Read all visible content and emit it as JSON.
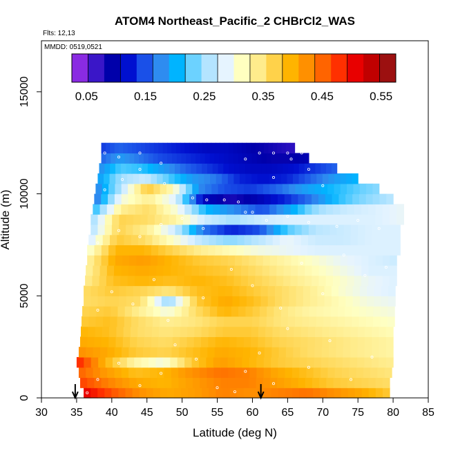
{
  "chart_data": {
    "type": "heatmap",
    "title": "ATOM4 Northeast_Pacific_2 CHBrCl2_WAS",
    "flights_note": "Flts: 12,13",
    "mmdd_note": "MMDD: 0519,0521",
    "xlabel": "Latitude (deg N)",
    "ylabel": "Altitude (m)",
    "xlim": [
      30,
      85
    ],
    "ylim": [
      0,
      17500
    ],
    "xticks": [
      30,
      35,
      40,
      45,
      50,
      55,
      60,
      65,
      70,
      75,
      80,
      85
    ],
    "yticks": [
      0,
      5000,
      10000,
      15000
    ],
    "colorbar": {
      "min": 0.025,
      "max": 0.575,
      "ticks": [
        0.05,
        0.15,
        0.25,
        0.35,
        0.45,
        0.55
      ],
      "tick_labels": [
        "0.05",
        "0.15",
        "0.25",
        "0.35",
        "0.45",
        "0.55"
      ],
      "colors": [
        "#8a2be2",
        "#3a16c8",
        "#0000aa",
        "#0010d0",
        "#1a50e8",
        "#2e8cf0",
        "#00b4ff",
        "#6cd2ff",
        "#b4e4ff",
        "#e6f4ff",
        "#ffffc0",
        "#ffec8c",
        "#ffd24a",
        "#ffb400",
        "#ff9000",
        "#ff6400",
        "#ff3000",
        "#e80000",
        "#c00000",
        "#9c1010"
      ]
    },
    "altitude_levels_m": [
      250,
      750,
      1250,
      1750,
      2250,
      2750,
      3250,
      3750,
      4250,
      4750,
      5250,
      5750,
      6250,
      6750,
      7250,
      7750,
      8250,
      8750,
      9250,
      9750,
      10250,
      10750,
      11250,
      11750,
      12250
    ],
    "row_lat_extent": [
      [
        36,
        79.5
      ],
      [
        35.5,
        79.5
      ],
      [
        35.3,
        79.8
      ],
      [
        35,
        80
      ],
      [
        35.3,
        80
      ],
      [
        35.5,
        80
      ],
      [
        35.6,
        80
      ],
      [
        35.7,
        80.2
      ],
      [
        35.8,
        80.2
      ],
      [
        36,
        80.3
      ],
      [
        36,
        80.3
      ],
      [
        36.2,
        80.5
      ],
      [
        36.3,
        80.5
      ],
      [
        36.5,
        80.5
      ],
      [
        36.5,
        81
      ],
      [
        36.7,
        81
      ],
      [
        37,
        81
      ],
      [
        37,
        81.5
      ],
      [
        37.3,
        81.5
      ],
      [
        37.5,
        80
      ],
      [
        37.7,
        78
      ],
      [
        38,
        75
      ],
      [
        38.2,
        72
      ],
      [
        38.5,
        68
      ],
      [
        38.5,
        66
      ]
    ],
    "row_values": [
      [
        0.52,
        0.47,
        0.43,
        0.41,
        0.42,
        0.44,
        0.43,
        0.44,
        0.45,
        0.43,
        0.41,
        0.38
      ],
      [
        0.48,
        0.44,
        0.41,
        0.4,
        0.42,
        0.44,
        0.44,
        0.42,
        0.4,
        0.38,
        0.37,
        0.36
      ],
      [
        0.46,
        0.42,
        0.39,
        0.4,
        0.43,
        0.45,
        0.44,
        0.41,
        0.39,
        0.37,
        0.36,
        0.35
      ],
      [
        0.5,
        0.4,
        0.33,
        0.3,
        0.38,
        0.42,
        0.4,
        0.38,
        0.37,
        0.36,
        0.35,
        0.34
      ],
      [
        0.43,
        0.41,
        0.38,
        0.37,
        0.39,
        0.41,
        0.4,
        0.38,
        0.36,
        0.35,
        0.34,
        0.33
      ],
      [
        0.41,
        0.4,
        0.37,
        0.36,
        0.38,
        0.4,
        0.39,
        0.37,
        0.36,
        0.35,
        0.34,
        0.33
      ],
      [
        0.4,
        0.39,
        0.36,
        0.35,
        0.36,
        0.38,
        0.38,
        0.36,
        0.35,
        0.34,
        0.33,
        0.32
      ],
      [
        0.38,
        0.39,
        0.36,
        0.34,
        0.35,
        0.37,
        0.37,
        0.35,
        0.34,
        0.33,
        0.32,
        0.31
      ],
      [
        0.37,
        0.38,
        0.34,
        0.3,
        0.36,
        0.4,
        0.38,
        0.35,
        0.33,
        0.32,
        0.31,
        0.3
      ],
      [
        0.36,
        0.37,
        0.36,
        0.24,
        0.38,
        0.41,
        0.39,
        0.36,
        0.34,
        0.32,
        0.3,
        0.29
      ],
      [
        0.36,
        0.38,
        0.37,
        0.35,
        0.39,
        0.4,
        0.38,
        0.36,
        0.34,
        0.31,
        0.29,
        0.28
      ],
      [
        0.34,
        0.39,
        0.4,
        0.39,
        0.4,
        0.39,
        0.37,
        0.35,
        0.33,
        0.31,
        0.29,
        0.28
      ],
      [
        0.33,
        0.4,
        0.41,
        0.4,
        0.39,
        0.38,
        0.36,
        0.34,
        0.32,
        0.3,
        0.28,
        0.28
      ],
      [
        0.33,
        0.41,
        0.42,
        0.4,
        0.38,
        0.37,
        0.35,
        0.33,
        0.31,
        0.29,
        0.28,
        0.27
      ],
      [
        0.3,
        0.4,
        0.4,
        0.37,
        0.34,
        0.32,
        0.3,
        0.29,
        0.28,
        0.28,
        0.28,
        0.28
      ],
      [
        0.27,
        0.38,
        0.36,
        0.31,
        0.26,
        0.24,
        0.26,
        0.29,
        0.27,
        0.27,
        0.28,
        0.28
      ],
      [
        0.25,
        0.37,
        0.34,
        0.27,
        0.16,
        0.12,
        0.14,
        0.22,
        0.26,
        0.27,
        0.28,
        0.28
      ],
      [
        0.24,
        0.37,
        0.36,
        0.33,
        0.27,
        0.25,
        0.27,
        0.28,
        0.28,
        0.28,
        0.28,
        0.29
      ],
      [
        0.2,
        0.34,
        0.36,
        0.3,
        0.2,
        0.17,
        0.14,
        0.19,
        0.25,
        0.27,
        0.28,
        0.29
      ],
      [
        0.15,
        0.3,
        0.34,
        0.28,
        0.1,
        0.07,
        0.09,
        0.12,
        0.16,
        0.21,
        0.24,
        0.26
      ],
      [
        0.16,
        0.26,
        0.38,
        0.32,
        0.17,
        0.14,
        0.13,
        0.15,
        0.18,
        0.2,
        0.22,
        0.24
      ],
      [
        0.18,
        0.25,
        0.27,
        0.22,
        0.18,
        0.16,
        0.12,
        0.11,
        0.12,
        0.15,
        0.18,
        0.2
      ],
      [
        0.17,
        0.22,
        0.21,
        0.18,
        0.15,
        0.13,
        0.11,
        0.1,
        0.1,
        0.11,
        0.13,
        0.15
      ],
      [
        0.15,
        0.18,
        0.16,
        0.14,
        0.13,
        0.12,
        0.11,
        0.1,
        0.09,
        0.08,
        0.08,
        0.09
      ],
      [
        0.13,
        0.15,
        0.14,
        0.13,
        0.12,
        0.11,
        0.1,
        0.1,
        0.09,
        0.08,
        0.07,
        0.06
      ]
    ],
    "sample_points": [
      [
        36.5,
        250
      ],
      [
        38,
        900
      ],
      [
        41,
        1700
      ],
      [
        44,
        600
      ],
      [
        47,
        1200
      ],
      [
        49,
        2600
      ],
      [
        52,
        1900
      ],
      [
        55,
        500
      ],
      [
        57.5,
        300
      ],
      [
        59,
        1300
      ],
      [
        61,
        2200
      ],
      [
        63,
        700
      ],
      [
        65,
        3400
      ],
      [
        68,
        1500
      ],
      [
        71,
        2800
      ],
      [
        74,
        900
      ],
      [
        77,
        2000
      ],
      [
        38,
        4300
      ],
      [
        40,
        5200
      ],
      [
        43,
        4600
      ],
      [
        46,
        5800
      ],
      [
        48,
        3800
      ],
      [
        53,
        4900
      ],
      [
        57,
        6300
      ],
      [
        60,
        5500
      ],
      [
        64,
        4400
      ],
      [
        67,
        6600
      ],
      [
        70,
        5100
      ],
      [
        73,
        7000
      ],
      [
        76,
        6000
      ],
      [
        79,
        6400
      ],
      [
        38,
        7600
      ],
      [
        41,
        8200
      ],
      [
        44,
        7900
      ],
      [
        47,
        8500
      ],
      [
        50,
        8800
      ],
      [
        53,
        8300
      ],
      [
        56,
        9700
      ],
      [
        59,
        9100
      ],
      [
        62,
        8700
      ],
      [
        65,
        8900
      ],
      [
        68,
        8600
      ],
      [
        72,
        8400
      ],
      [
        75,
        8700
      ],
      [
        78,
        8300
      ],
      [
        39,
        10200
      ],
      [
        41.5,
        10700
      ],
      [
        44,
        11200
      ],
      [
        47.5,
        10500
      ],
      [
        51.5,
        9800
      ],
      [
        53.5,
        9700
      ],
      [
        58,
        9600
      ],
      [
        60,
        9100
      ],
      [
        63,
        10800
      ],
      [
        65.5,
        11700
      ],
      [
        68,
        11200
      ],
      [
        70,
        10400
      ],
      [
        39,
        12000
      ],
      [
        41,
        11800
      ],
      [
        44,
        12000
      ],
      [
        47,
        11500
      ],
      [
        59,
        11700
      ],
      [
        61,
        12000
      ],
      [
        63,
        12000
      ],
      [
        65,
        12000
      ],
      [
        67,
        12000
      ],
      [
        69,
        12000
      ]
    ],
    "arrows_lat": [
      34.8,
      61.2
    ]
  }
}
